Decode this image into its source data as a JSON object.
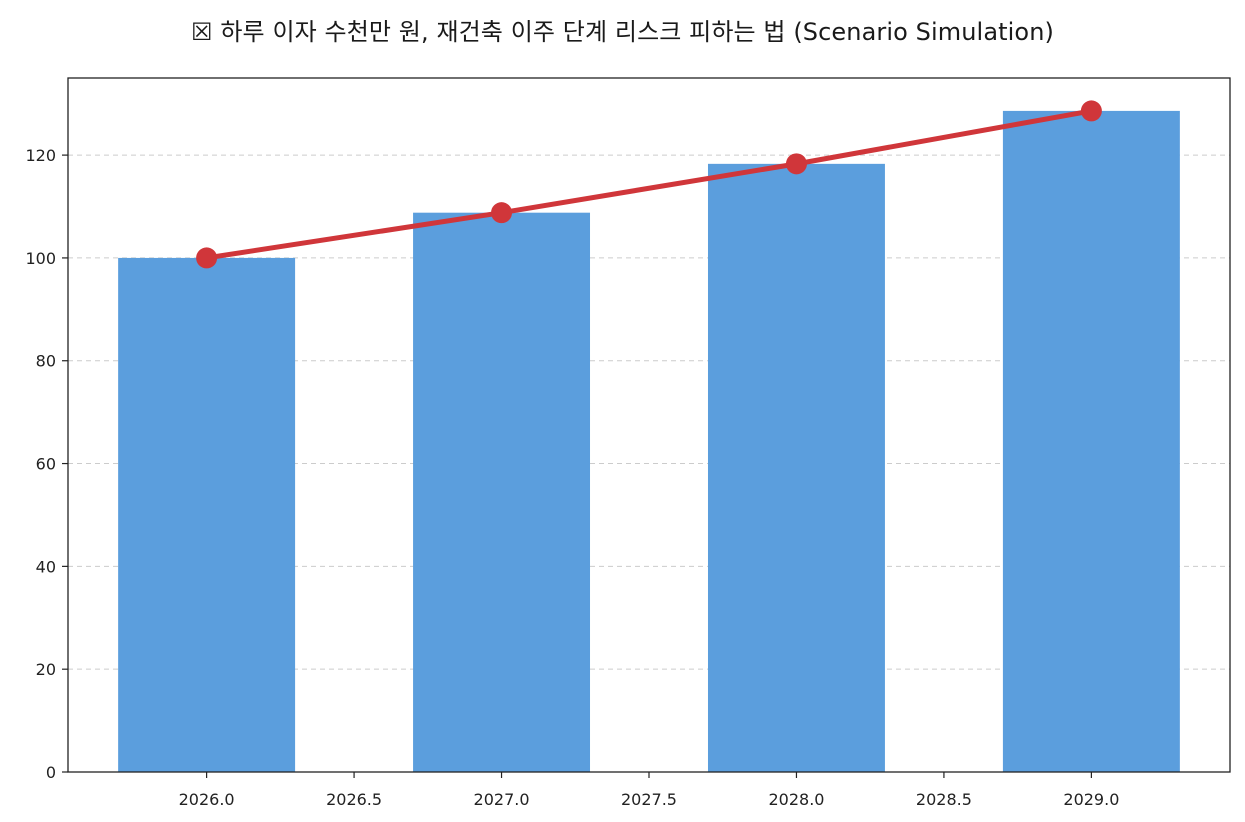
{
  "chart_data": {
    "type": "bar",
    "title": "☒ 하루 이자 수천만 원, 재건축 이주 단계 리스크 피하는 법 (Scenario Simulation)",
    "xlabel": "",
    "ylabel": "",
    "x": [
      2026,
      2027,
      2028,
      2029
    ],
    "xlim": [
      2025.53,
      2029.47
    ],
    "ylim": [
      0,
      135
    ],
    "x_ticks": [
      "2026.0",
      "2026.5",
      "2027.0",
      "2027.5",
      "2028.0",
      "2028.5",
      "2029.0"
    ],
    "y_ticks": [
      "0",
      "20",
      "40",
      "60",
      "80",
      "100",
      "120"
    ],
    "grid": "y-dashed",
    "series": [
      {
        "type": "bar",
        "color": "#5b9edd",
        "values": [
          100,
          108.8,
          118.3,
          128.6
        ]
      },
      {
        "type": "line",
        "color": "#d0363a",
        "marker": "circle",
        "values": [
          100,
          108.8,
          118.3,
          128.6
        ]
      }
    ]
  }
}
